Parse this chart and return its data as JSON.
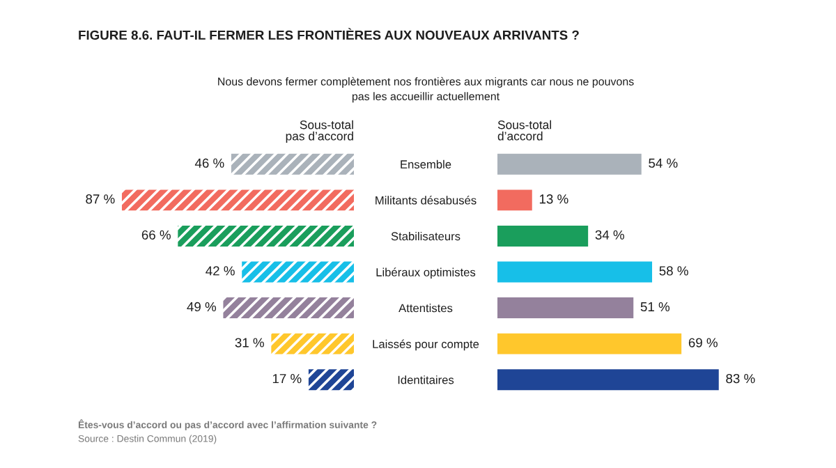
{
  "chart_data": [
    {
      "type": "bar",
      "orientation": "horizontal",
      "title": "FIGURE 8.6. FAUT-IL FERMER LES FRONTIÈRES AUX NOUVEAUX ARRIVANTS ?",
      "subtitle": "Nous devons fermer complètement nos frontières aux migrants car nous ne pouvons\npas les accueillir actuellement",
      "xlabel": "Sous-total\nd’accord",
      "categories": [
        "Ensemble",
        "Militants désabusés",
        "Stabilisateurs",
        "Libéraux optimistes",
        "Attentistes",
        "Laissés pour compte",
        "Identitaires"
      ],
      "values": [
        54,
        13,
        34,
        58,
        51,
        69,
        83
      ],
      "colors": [
        "#aab2ba",
        "#f26b5f",
        "#1a9e5c",
        "#17bfe8",
        "#94819c",
        "#ffc72c",
        "#1f4596"
      ],
      "value_labels": [
        "54 %",
        "13 %",
        "34 %",
        "58 %",
        "51 %",
        "69 %",
        "83 %"
      ],
      "tick_labels": "y",
      "annotations": [
        "Êtes-vous d’accord ou pas d’accord avec l’affirmation suivante ?",
        "Source : Destin Commun (2019)"
      ]
    },
    {
      "type": "bar",
      "orientation": "horizontal",
      "xlabel": "Sous-total\npas d’accord",
      "categories": [
        null,
        null,
        null,
        null,
        null,
        null,
        null
      ],
      "values": [
        46,
        87,
        66,
        42,
        49,
        31,
        17
      ],
      "colors": [
        "#aab2ba",
        "#f26b5f",
        "#1a9e5c",
        "#17bfe8",
        "#94819c",
        "#ffc72c",
        "#1f4596"
      ],
      "value_labels": [
        "46 %",
        "87 %",
        "66 %",
        "42 %",
        "49 %",
        "31 %",
        "17 %"
      ],
      "tick_labels": false
    }
  ]
}
